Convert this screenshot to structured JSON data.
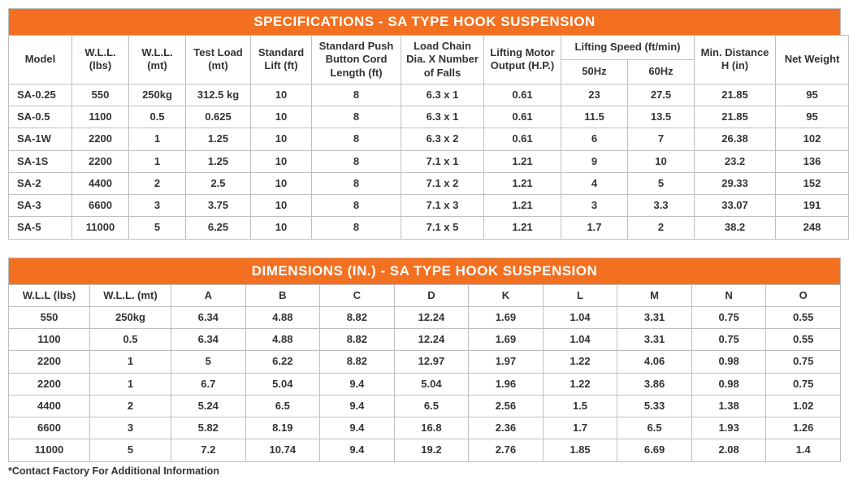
{
  "specs": {
    "title": "SPECIFICATIONS - SA TYPE HOOK SUSPENSION",
    "columns": {
      "model": "Model",
      "wll_lbs": "W.L.L. (lbs)",
      "wll_mt": "W.L.L. (mt)",
      "test_load": "Test Load (mt)",
      "std_lift": "Standard Lift (ft)",
      "cord_len": "Standard Push Button Cord Length (ft)",
      "load_chain": "Load Chain Dia. X Number of Falls",
      "motor": "Lifting Motor Output (H.P.)",
      "speed_group": "Lifting Speed (ft/min)",
      "speed_50": "50Hz",
      "speed_60": "60Hz",
      "min_dist": "Min. Distance H (in)",
      "net_wt": "Net Weight"
    },
    "rows": [
      {
        "model": "SA-0.25",
        "wll_lbs": "550",
        "wll_mt": "250kg",
        "test_load": "312.5 kg",
        "std_lift": "10",
        "cord_len": "8",
        "load_chain": "6.3 x 1",
        "motor": "0.61",
        "speed_50": "23",
        "speed_60": "27.5",
        "min_dist": "21.85",
        "net_wt": "95"
      },
      {
        "model": "SA-0.5",
        "wll_lbs": "1100",
        "wll_mt": "0.5",
        "test_load": "0.625",
        "std_lift": "10",
        "cord_len": "8",
        "load_chain": "6.3 x 1",
        "motor": "0.61",
        "speed_50": "11.5",
        "speed_60": "13.5",
        "min_dist": "21.85",
        "net_wt": "95"
      },
      {
        "model": "SA-1W",
        "wll_lbs": "2200",
        "wll_mt": "1",
        "test_load": "1.25",
        "std_lift": "10",
        "cord_len": "8",
        "load_chain": "6.3 x 2",
        "motor": "0.61",
        "speed_50": "6",
        "speed_60": "7",
        "min_dist": "26.38",
        "net_wt": "102"
      },
      {
        "model": "SA-1S",
        "wll_lbs": "2200",
        "wll_mt": "1",
        "test_load": "1.25",
        "std_lift": "10",
        "cord_len": "8",
        "load_chain": "7.1 x 1",
        "motor": "1.21",
        "speed_50": "9",
        "speed_60": "10",
        "min_dist": "23.2",
        "net_wt": "136"
      },
      {
        "model": "SA-2",
        "wll_lbs": "4400",
        "wll_mt": "2",
        "test_load": "2.5",
        "std_lift": "10",
        "cord_len": "8",
        "load_chain": "7.1 x 2",
        "motor": "1.21",
        "speed_50": "4",
        "speed_60": "5",
        "min_dist": "29.33",
        "net_wt": "152"
      },
      {
        "model": "SA-3",
        "wll_lbs": "6600",
        "wll_mt": "3",
        "test_load": "3.75",
        "std_lift": "10",
        "cord_len": "8",
        "load_chain": "7.1 x 3",
        "motor": "1.21",
        "speed_50": "3",
        "speed_60": "3.3",
        "min_dist": "33.07",
        "net_wt": "191"
      },
      {
        "model": "SA-5",
        "wll_lbs": "11000",
        "wll_mt": "5",
        "test_load": "6.25",
        "std_lift": "10",
        "cord_len": "8",
        "load_chain": "7.1 x 5",
        "motor": "1.21",
        "speed_50": "1.7",
        "speed_60": "2",
        "min_dist": "38.2",
        "net_wt": "248"
      }
    ]
  },
  "dims": {
    "title": "DIMENSIONS (IN.) - SA TYPE HOOK SUSPENSION",
    "columns": [
      "W.L.L (lbs)",
      "W.L.L. (mt)",
      "A",
      "B",
      "C",
      "D",
      "K",
      "L",
      "M",
      "N",
      "O"
    ],
    "rows": [
      [
        "550",
        "250kg",
        "6.34",
        "4.88",
        "8.82",
        "12.24",
        "1.69",
        "1.04",
        "3.31",
        "0.75",
        "0.55"
      ],
      [
        "1100",
        "0.5",
        "6.34",
        "4.88",
        "8.82",
        "12.24",
        "1.69",
        "1.04",
        "3.31",
        "0.75",
        "0.55"
      ],
      [
        "2200",
        "1",
        "5",
        "6.22",
        "8.82",
        "12.97",
        "1.97",
        "1.22",
        "4.06",
        "0.98",
        "0.75"
      ],
      [
        "2200",
        "1",
        "6.7",
        "5.04",
        "9.4",
        "5.04",
        "1.96",
        "1.22",
        "3.86",
        "0.98",
        "0.75"
      ],
      [
        "4400",
        "2",
        "5.24",
        "6.5",
        "9.4",
        "6.5",
        "2.56",
        "1.5",
        "5.33",
        "1.38",
        "1.02"
      ],
      [
        "6600",
        "3",
        "5.82",
        "8.19",
        "9.4",
        "16.8",
        "2.36",
        "1.7",
        "6.5",
        "1.93",
        "1.26"
      ],
      [
        "11000",
        "5",
        "7.2",
        "10.74",
        "9.4",
        "19.2",
        "2.76",
        "1.85",
        "6.69",
        "2.08",
        "1.4"
      ]
    ]
  },
  "footnote": "*Contact Factory For Additional Information",
  "colors": {
    "header_bg": "#f37021",
    "border": "#bfbfbf"
  }
}
